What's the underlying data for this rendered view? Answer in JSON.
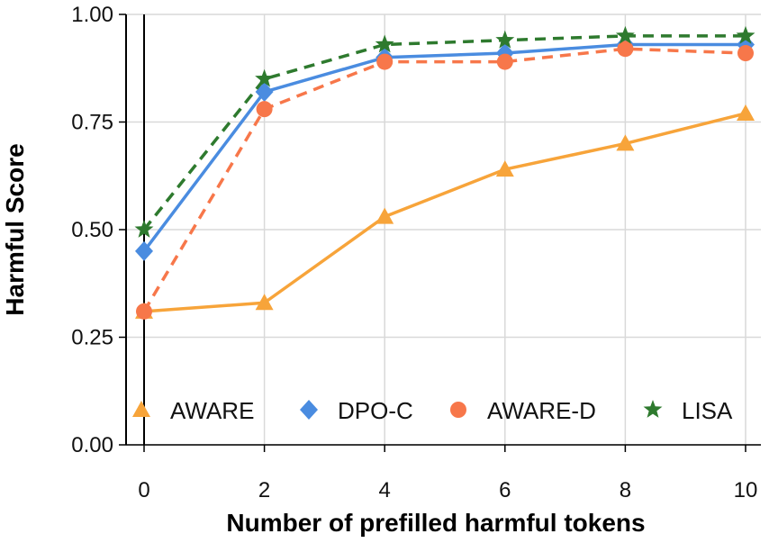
{
  "chart_data": {
    "type": "line",
    "title": "",
    "xlabel": "Number of prefilled harmful tokens",
    "ylabel": "Harmful Score",
    "x": [
      0,
      2,
      4,
      6,
      8,
      10
    ],
    "xlim": [
      0,
      10
    ],
    "ylim": [
      0,
      1
    ],
    "xticks": [
      "0",
      "2",
      "4",
      "6",
      "8",
      "10"
    ],
    "yticks": [
      "0.00",
      "0.25",
      "0.50",
      "0.75",
      "1.00"
    ],
    "grid": true,
    "legend_position": "bottom, inside plot",
    "series": [
      {
        "name": "AWARE",
        "values": [
          0.31,
          0.33,
          0.53,
          0.64,
          0.7,
          0.77
        ],
        "color": "#f7a43a",
        "line": "solid",
        "marker": "triangle"
      },
      {
        "name": "DPO-C",
        "values": [
          0.45,
          0.82,
          0.9,
          0.91,
          0.93,
          0.93
        ],
        "color": "#4a8ce0",
        "line": "solid",
        "marker": "diamond"
      },
      {
        "name": "AWARE-D",
        "values": [
          0.31,
          0.78,
          0.89,
          0.89,
          0.92,
          0.91
        ],
        "color": "#f7774a",
        "line": "dashed",
        "marker": "circle"
      },
      {
        "name": "LISA",
        "values": [
          0.5,
          0.85,
          0.93,
          0.94,
          0.95,
          0.95
        ],
        "color": "#2e7a2e",
        "line": "dashed",
        "marker": "star"
      }
    ]
  }
}
